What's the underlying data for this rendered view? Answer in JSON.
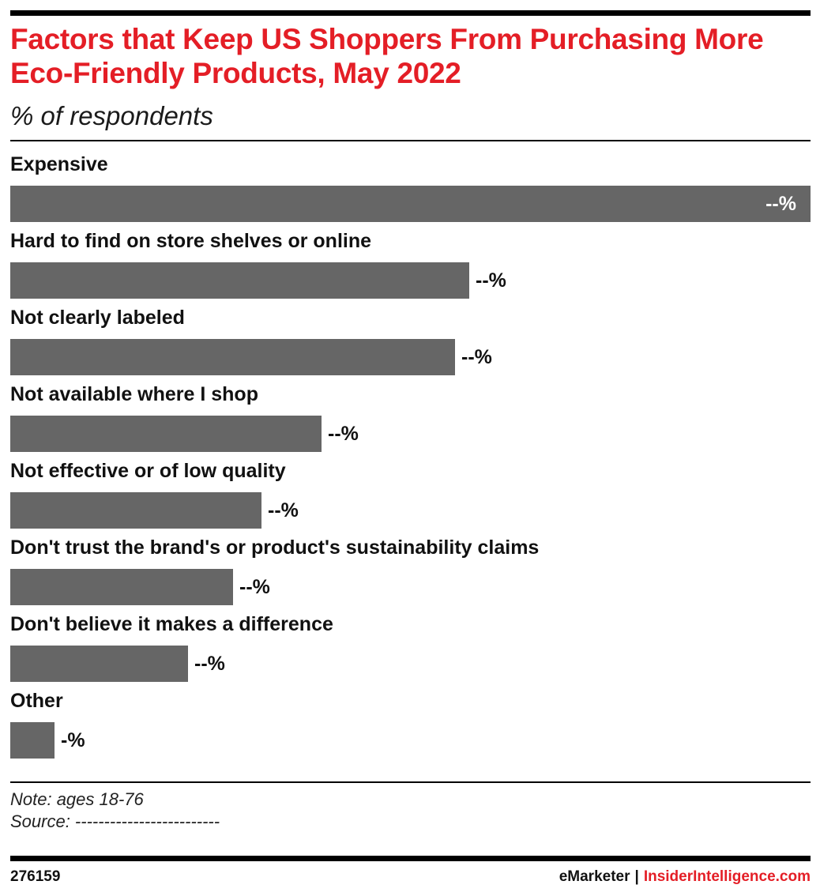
{
  "chart_data": {
    "type": "bar",
    "orientation": "horizontal",
    "title": "Factors that Keep US Shoppers From Purchasing More Eco-Friendly Products, May 2022",
    "subtitle": "% of respondents",
    "categories": [
      "Expensive",
      "Hard to find on store shelves or online",
      "Not clearly labeled",
      "Not available where I shop",
      "Not effective or of low quality",
      "Don't trust the brand's or product's sustainability claims",
      "Don't believe it makes a difference",
      "Other"
    ],
    "values": [
      100,
      57.4,
      55.6,
      38.9,
      31.4,
      27.8,
      22.2,
      5.5
    ],
    "value_labels": [
      "--%",
      "--%",
      "--%",
      "--%",
      "--%",
      "--%",
      "--%",
      "-%"
    ],
    "colors": {
      "bar": "#666666",
      "title": "#e41e26"
    },
    "grid": false,
    "legend": "none"
  },
  "footer": {
    "note": "Note: ages 18-76",
    "source": "Source: -------------------------",
    "chart_id": "276159",
    "brand_emarketer": "eMarketer",
    "brand_separator": "|",
    "brand_insider": "InsiderIntelligence.com"
  }
}
